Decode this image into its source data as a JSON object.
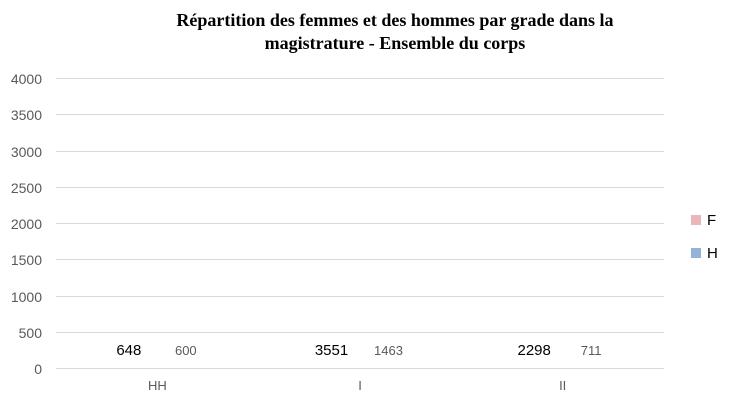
{
  "title": "Répartition des femmes et des hommes par grade dans la magistrature - Ensemble du corps",
  "chart_data": {
    "type": "bar",
    "categories": [
      "HH",
      "I",
      "II"
    ],
    "series": [
      {
        "name": "F",
        "values": [
          648,
          3551,
          2298
        ],
        "color": "#e8b7ba"
      },
      {
        "name": "H",
        "values": [
          600,
          1463,
          711
        ],
        "color": "#95b3d7"
      }
    ],
    "xlabel": "",
    "ylabel": "",
    "ylim": [
      0,
      4000
    ],
    "yticks": [
      0,
      500,
      1000,
      1500,
      2000,
      2500,
      3000,
      3500,
      4000
    ],
    "grid": true,
    "legend_position": "right",
    "legend": [
      "F",
      "H"
    ]
  },
  "colors": {
    "series_f": "#e8b7ba",
    "series_h": "#95b3d7",
    "gridline": "#d9d9d9",
    "axis_label_text": "#595959",
    "value_label_f": "#000000",
    "value_label_h": "#595959",
    "title_text": "#000000",
    "background": "#ffffff"
  }
}
